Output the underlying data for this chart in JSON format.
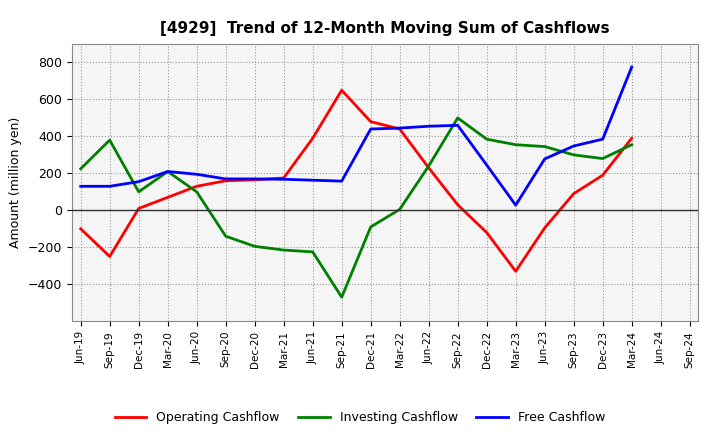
{
  "title": "[4929]  Trend of 12-Month Moving Sum of Cashflows",
  "ylabel": "Amount (million yen)",
  "xlabels": [
    "Jun-19",
    "Sep-19",
    "Dec-19",
    "Mar-20",
    "Jun-20",
    "Sep-20",
    "Dec-20",
    "Mar-21",
    "Jun-21",
    "Sep-21",
    "Dec-21",
    "Mar-22",
    "Jun-22",
    "Sep-22",
    "Dec-22",
    "Mar-23",
    "Jun-23",
    "Sep-23",
    "Dec-23",
    "Mar-24",
    "Jun-24",
    "Sep-24"
  ],
  "operating": [
    -100,
    -250,
    10,
    70,
    130,
    160,
    165,
    175,
    390,
    650,
    480,
    440,
    230,
    30,
    -120,
    -330,
    -95,
    90,
    190,
    390,
    null,
    null
  ],
  "investing": [
    225,
    380,
    100,
    210,
    100,
    -140,
    -195,
    -215,
    -225,
    -470,
    -90,
    5,
    240,
    500,
    385,
    355,
    345,
    300,
    280,
    355,
    null,
    null
  ],
  "free": [
    130,
    130,
    155,
    210,
    195,
    170,
    170,
    168,
    163,
    158,
    440,
    445,
    455,
    460,
    245,
    28,
    278,
    348,
    385,
    775,
    null,
    null
  ],
  "operating_color": "#ff0000",
  "investing_color": "#008000",
  "free_color": "#0000ff",
  "ylim": [
    -600,
    900
  ],
  "yticks": [
    -400,
    -200,
    0,
    200,
    400,
    600,
    800
  ],
  "bg_color": "#ffffff",
  "plot_bg_color": "#f5f5f5",
  "grid_color": "#999999",
  "linewidth": 2.0,
  "legend_labels": [
    "Operating Cashflow",
    "Investing Cashflow",
    "Free Cashflow"
  ]
}
